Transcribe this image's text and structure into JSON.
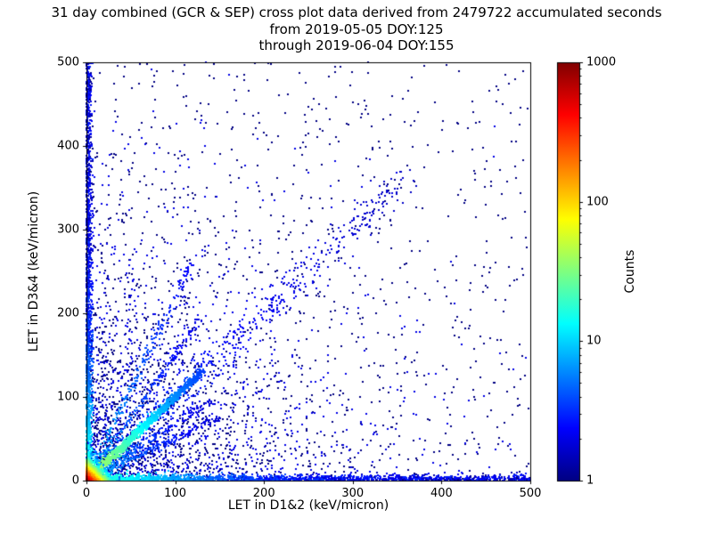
{
  "chart_data": {
    "type": "scatter",
    "title": "31 day combined (GCR & SEP) cross plot data derived from 2479722 accumulated seconds",
    "subtitle1": "from 2019-05-05 DOY:125",
    "subtitle2": "through 2019-06-04 DOY:155",
    "xlabel": "LET in D1&2 (keV/micron)",
    "ylabel": "LET in D3&4 (keV/micron)",
    "xlim": [
      0,
      500
    ],
    "ylim": [
      0,
      500
    ],
    "xticks": [
      0,
      100,
      200,
      300,
      400,
      500
    ],
    "yticks": [
      0,
      100,
      200,
      300,
      400,
      500
    ],
    "grid": false,
    "legend": "none",
    "colorbar": {
      "label": "Counts",
      "scale": "log",
      "range": [
        1,
        1000
      ],
      "ticks": [
        1,
        10,
        100,
        1000
      ],
      "colormap": "jet",
      "stops": [
        {
          "t": 0.0,
          "color": "#000083"
        },
        {
          "t": 0.125,
          "color": "#0000ff"
        },
        {
          "t": 0.375,
          "color": "#00ffff"
        },
        {
          "t": 0.625,
          "color": "#ffff00"
        },
        {
          "t": 0.875,
          "color": "#ff0000"
        },
        {
          "t": 1.0,
          "color": "#800000"
        }
      ]
    },
    "features": [
      "very dense hot core at origin reaching ~1000 counts (red/yellow)",
      "bright y=x diagonal ridge out to ~130 keV/micron fading cyan to blue",
      "dense low-count bands hugging both axes out to 500",
      "sparse blue diagonal continuation from ~100 to ~360",
      "faint rays from origin at slopes above and below the diagonal",
      "isolated single-count dark blue points scattered over full plane"
    ],
    "clusters": [
      {
        "kind": "uniform",
        "n": 650,
        "count": 1
      },
      {
        "kind": "bg",
        "n": 2600,
        "scale": 115,
        "count_base": 1,
        "count_rand": 2
      },
      {
        "kind": "bandx",
        "n": 2000,
        "xmax": 500,
        "p": 1.6,
        "sy": 3.2,
        "cmax": 22,
        "cscale": 70
      },
      {
        "kind": "bandy",
        "n": 1700,
        "ymax": 500,
        "p": 1.4,
        "sx": 3.0,
        "cmax": 18,
        "cscale": 70
      },
      {
        "kind": "ray",
        "n": 240,
        "m": 0.5,
        "len": 150,
        "pw": 1.2,
        "w": 2.5,
        "cmax": 9,
        "cscale": 60
      },
      {
        "kind": "ray",
        "n": 200,
        "m": 0.68,
        "len": 140,
        "pw": 1.2,
        "w": 2.5,
        "cmax": 8,
        "cscale": 60
      },
      {
        "kind": "ray",
        "n": 200,
        "m": 1.5,
        "len": 130,
        "pw": 1.2,
        "w": 2.5,
        "cmax": 8,
        "cscale": 60
      },
      {
        "kind": "ray",
        "n": 220,
        "m": 2.2,
        "len": 120,
        "pw": 1.2,
        "w": 2.5,
        "cmax": 9,
        "cscale": 60
      },
      {
        "kind": "ray",
        "n": 480,
        "m": 1.0,
        "len": 360,
        "pw": 1.0,
        "w": 9,
        "cmax": 3,
        "cscale": 220
      },
      {
        "kind": "ray",
        "n": 1500,
        "m": 1.0,
        "len": 130,
        "pw": 1.35,
        "w": 2.2,
        "cmax": 55,
        "cscale": 42
      },
      {
        "kind": "biexp",
        "n": 3800,
        "sx": 5,
        "sy": 5,
        "cmax": 1000,
        "cscale": 7,
        "cmin": 2
      }
    ]
  }
}
